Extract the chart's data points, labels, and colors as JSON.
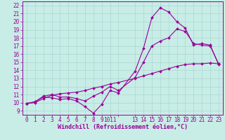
{
  "xlabel": "Windchill (Refroidissement éolien,°C)",
  "bg_color": "#c8ece6",
  "line_color": "#990099",
  "grid_color": "#aad8d2",
  "xlim": [
    -0.5,
    23.5
  ],
  "ylim": [
    8.5,
    22.5
  ],
  "xticks": [
    0,
    1,
    2,
    3,
    4,
    5,
    6,
    7,
    8,
    9,
    10,
    11,
    13,
    14,
    15,
    16,
    17,
    18,
    19,
    20,
    21,
    22,
    23
  ],
  "xtick_labels": [
    "0",
    "1",
    "2",
    "3",
    "4",
    "5",
    "6",
    "7",
    "8",
    "9",
    "1011",
    "",
    "13",
    "14",
    "15",
    "16",
    "17",
    "18",
    "19",
    "20",
    "21",
    "22",
    "23"
  ],
  "yticks": [
    9,
    10,
    11,
    12,
    13,
    14,
    15,
    16,
    17,
    18,
    19,
    20,
    21,
    22
  ],
  "line1_x": [
    0,
    1,
    2,
    3,
    4,
    5,
    6,
    7,
    8,
    9,
    10,
    11,
    13,
    14,
    15,
    16,
    17,
    18,
    19,
    20,
    21,
    22,
    23
  ],
  "line1_y": [
    9.9,
    10.1,
    10.7,
    10.6,
    10.4,
    10.5,
    10.2,
    9.5,
    8.7,
    9.8,
    11.5,
    11.2,
    13.9,
    16.7,
    20.5,
    21.7,
    21.2,
    20.0,
    19.2,
    17.1,
    17.3,
    17.1,
    14.7
  ],
  "line2_x": [
    0,
    1,
    2,
    3,
    4,
    5,
    6,
    7,
    8,
    9,
    10,
    11,
    13,
    14,
    15,
    16,
    17,
    18,
    19,
    20,
    21,
    22,
    23
  ],
  "line2_y": [
    9.9,
    10.1,
    10.8,
    11.0,
    10.7,
    10.7,
    10.5,
    10.2,
    10.8,
    11.3,
    12.0,
    11.5,
    13.1,
    15.0,
    17.0,
    17.6,
    18.0,
    19.1,
    18.8,
    17.3,
    17.1,
    17.0,
    14.8
  ],
  "line3_x": [
    0,
    1,
    2,
    3,
    4,
    5,
    6,
    7,
    8,
    9,
    10,
    11,
    13,
    14,
    15,
    16,
    17,
    18,
    19,
    20,
    21,
    22,
    23
  ],
  "line3_y": [
    9.9,
    10.0,
    10.5,
    10.9,
    11.1,
    11.2,
    11.3,
    11.5,
    11.8,
    12.0,
    12.3,
    12.5,
    13.0,
    13.3,
    13.6,
    13.9,
    14.2,
    14.5,
    14.7,
    14.8,
    14.8,
    14.9,
    14.8
  ],
  "tick_fontsize": 5.5,
  "xlabel_fontsize": 6.0,
  "marker_size": 2.0,
  "line_width": 0.8
}
